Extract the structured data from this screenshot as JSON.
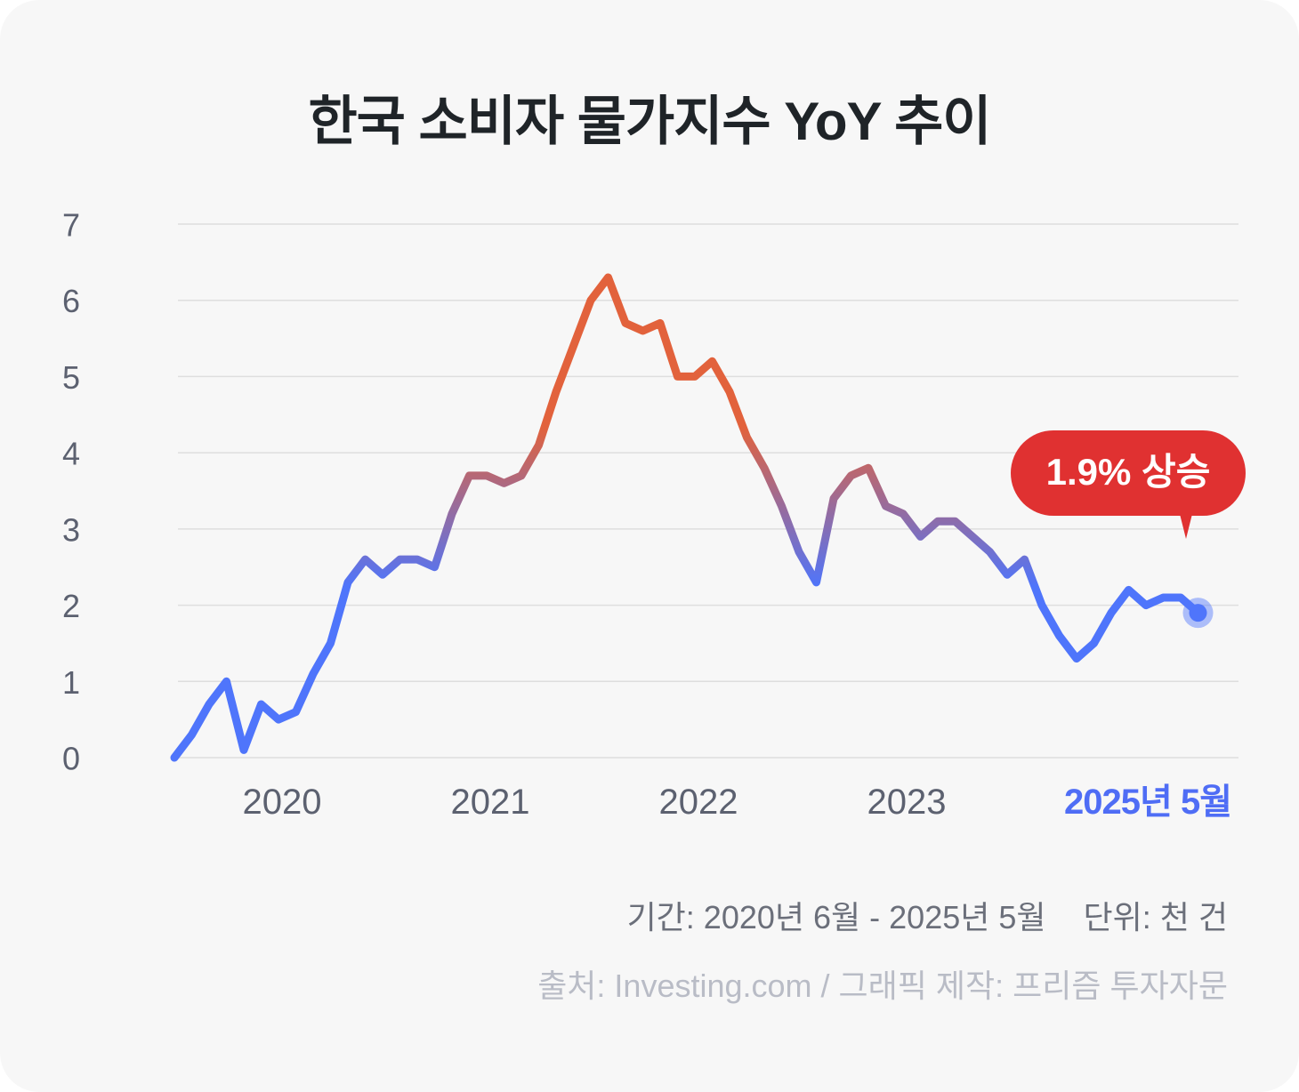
{
  "title": "한국 소비자 물가지수 YoY 추이",
  "callout": {
    "label": "1.9% 상승",
    "color": "#e03131"
  },
  "footer": {
    "period": "기간: 2020년 6월 - 2025년 5월",
    "unit": "단위: 천 건",
    "source": "출처: Investing.com / 그래픽 제작: 프리즘 투자자문"
  },
  "colors": {
    "low": "#4f75fb",
    "high": "#e2623c",
    "grid": "#dedede",
    "axis_text": "#5c6170",
    "highlight_tick": "#4f6df5"
  },
  "chart_data": {
    "type": "line",
    "title": "한국 소비자 물가지수 YoY 추이",
    "xlabel": "",
    "ylabel": "",
    "ylim": [
      0,
      7
    ],
    "yticks": [
      0,
      1,
      2,
      3,
      4,
      5,
      6,
      7
    ],
    "grid": true,
    "xticks": [
      {
        "label": "2020",
        "index": 6,
        "highlight": false
      },
      {
        "label": "2021",
        "index": 18,
        "highlight": false
      },
      {
        "label": "2022",
        "index": 30,
        "highlight": false
      },
      {
        "label": "2023",
        "index": 42,
        "highlight": false
      },
      {
        "label": "2025년 5월",
        "index": 59,
        "highlight": true
      }
    ],
    "series": [
      {
        "values": [
          0.0,
          0.3,
          0.7,
          1.0,
          0.1,
          0.7,
          0.5,
          0.6,
          1.1,
          1.5,
          2.3,
          2.6,
          2.4,
          2.6,
          2.6,
          2.5,
          3.2,
          3.7,
          3.7,
          3.6,
          3.7,
          4.1,
          4.8,
          5.4,
          6.0,
          6.3,
          5.7,
          5.6,
          5.7,
          5.0,
          5.0,
          5.2,
          4.8,
          4.2,
          3.8,
          3.3,
          2.7,
          2.3,
          3.4,
          3.7,
          3.8,
          3.3,
          3.2,
          2.9,
          3.1,
          3.1,
          2.9,
          2.7,
          2.4,
          2.6,
          2.0,
          1.6,
          1.3,
          1.5,
          1.9,
          2.2,
          2.0,
          2.1,
          2.1,
          1.9
        ]
      }
    ],
    "last_point": {
      "value": 1.9,
      "label": "2025년 5월"
    }
  }
}
